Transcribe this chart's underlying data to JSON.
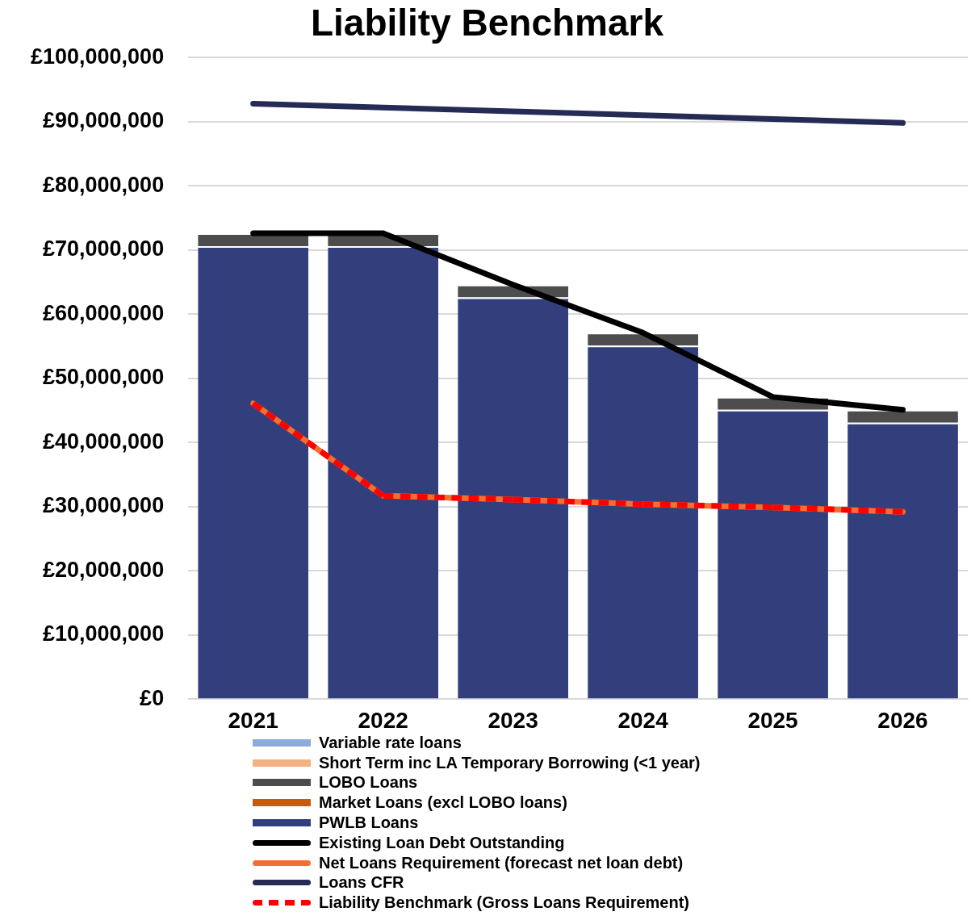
{
  "chart_data": {
    "type": "bar",
    "title": "Liability Benchmark",
    "categories": [
      "2021",
      "2022",
      "2023",
      "2024",
      "2025",
      "2026"
    ],
    "stacked": true,
    "series": [
      {
        "name": "PWLB Loans",
        "color": "#323f7c",
        "values": [
          70600000,
          70600000,
          62600000,
          55100000,
          45100000,
          43100000
        ]
      },
      {
        "name": "Market Loans (excl LOBO loans)",
        "color": "#c55a11",
        "values": [
          0,
          0,
          0,
          0,
          0,
          0
        ]
      },
      {
        "name": "LOBO Loans",
        "color": "#4d4d4d",
        "values": [
          2000000,
          2000000,
          2000000,
          2000000,
          2000000,
          2000000
        ]
      },
      {
        "name": "Short Term inc LA Temporary Borrowing (<1 year)",
        "color": "#f4b183",
        "values": [
          0,
          0,
          0,
          0,
          0,
          0
        ]
      },
      {
        "name": "Variable rate loans",
        "color": "#8eaadb",
        "values": [
          0,
          0,
          0,
          0,
          0,
          0
        ]
      },
      {
        "name": "Existing Loan Debt Outstanding",
        "type": "line",
        "color": "#000000",
        "line_style": "solid",
        "values": [
          72600000,
          72600000,
          64600000,
          57100000,
          47100000,
          45100000
        ]
      },
      {
        "name": "Net Loans Requirement (forecast net loan debt)",
        "type": "line",
        "color": "#f26f32",
        "line_style": "solid",
        "values": [
          46100000,
          31700000,
          31100000,
          30400000,
          29900000,
          29200000
        ]
      },
      {
        "name": "Loans CFR",
        "type": "line",
        "color": "#262b55",
        "line_style": "solid",
        "values": [
          92800000,
          92200000,
          91600000,
          91000000,
          90400000,
          89800000
        ]
      },
      {
        "name": "Liability Benchmark (Gross Loans Requirement)",
        "type": "line",
        "color": "#ff0000",
        "line_style": "dashed",
        "values": [
          46100000,
          31700000,
          31100000,
          30400000,
          29900000,
          29200000
        ]
      }
    ],
    "ylim": [
      0,
      100000000
    ],
    "yticks": [
      {
        "value": 0,
        "label": "£0"
      },
      {
        "value": 10000000,
        "label": "£10,000,000"
      },
      {
        "value": 20000000,
        "label": "£20,000,000"
      },
      {
        "value": 30000000,
        "label": "£30,000,000"
      },
      {
        "value": 40000000,
        "label": "£40,000,000"
      },
      {
        "value": 50000000,
        "label": "£50,000,000"
      },
      {
        "value": 60000000,
        "label": "£60,000,000"
      },
      {
        "value": 70000000,
        "label": "£70,000,000"
      },
      {
        "value": 80000000,
        "label": "£80,000,000"
      },
      {
        "value": 90000000,
        "label": "£90,000,000"
      },
      {
        "value": 100000000,
        "label": "£100,000,000"
      }
    ],
    "grid": "y",
    "legend": "bottom",
    "marker": "none"
  }
}
